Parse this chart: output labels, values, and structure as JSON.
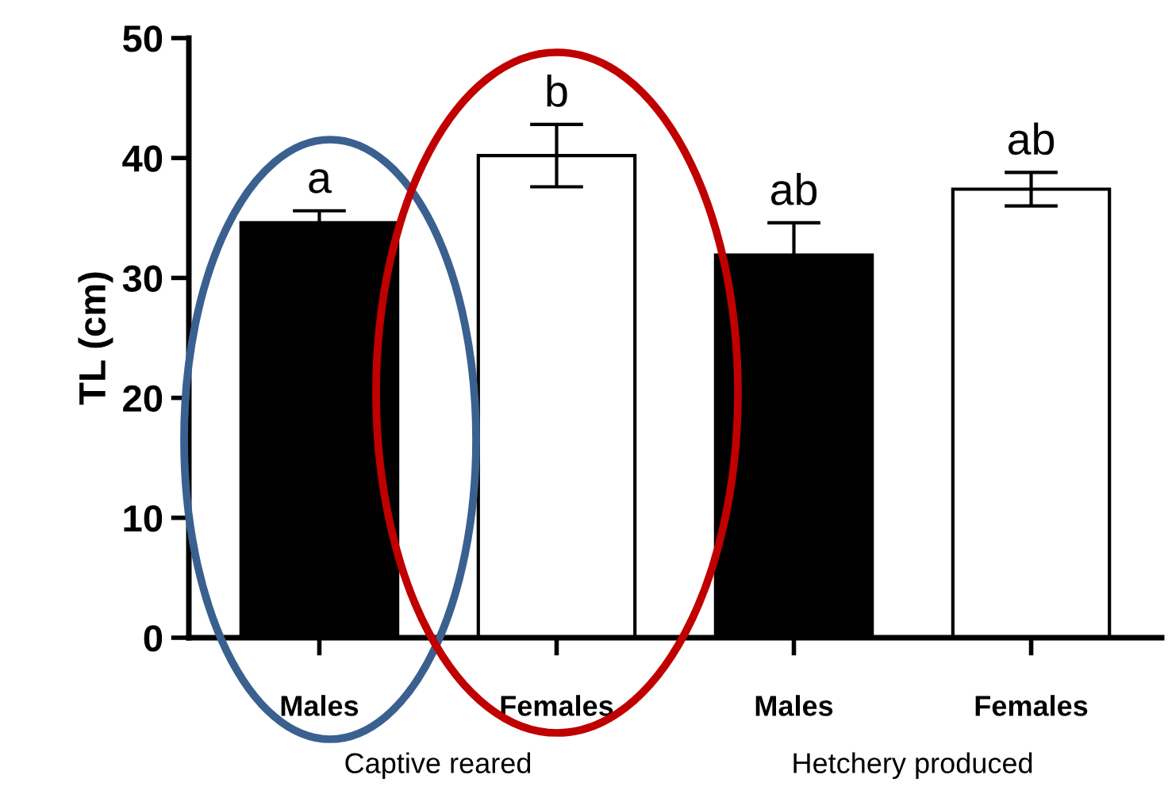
{
  "chart_data": {
    "type": "bar",
    "ylabel": "TL (cm)",
    "categories": [
      "Males",
      "Females",
      "Males",
      "Females"
    ],
    "values": [
      34.6,
      40.2,
      31.9,
      37.4
    ],
    "colors": [
      "#000000",
      "#ffffff",
      "#000000",
      "#ffffff"
    ],
    "errors": [
      1.0,
      2.6,
      2.7,
      1.4
    ],
    "ylim": [
      0,
      50
    ],
    "yticks": [
      0,
      10,
      20,
      30,
      40,
      50
    ],
    "grid": false,
    "legend": false,
    "annotations": [
      "a",
      "b",
      "ab",
      "ab",
      "Captive reared",
      "Hetchery produced"
    ]
  }
}
